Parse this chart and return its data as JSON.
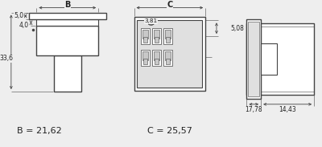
{
  "bg_color": "#eeeeee",
  "line_color": "#444444",
  "text_color": "#222222",
  "title_text": "B = 21,62",
  "title_text2": "C = 25,57",
  "dim_5_0": "5,0",
  "dim_4_0": "4,0",
  "dim_33_6": "33,6",
  "dim_B": "B",
  "dim_C": "C",
  "dim_3_81": "3,81",
  "dim_5_08": "5,08",
  "dim_17_78": "17,78",
  "dim_14_43": "14,43"
}
